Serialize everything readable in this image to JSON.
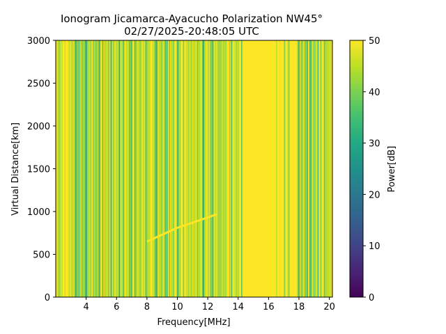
{
  "chart_data": {
    "type": "heatmap",
    "title_line1": "Ionogram Jicamarca-Ayacucho Polarization NW45°",
    "title_line2": "02/27/2025-20:48:05 UTC",
    "xlabel": "Frequency[MHz]",
    "ylabel": "Virtual Distance[km]",
    "xlim": [
      2.0,
      20.2
    ],
    "ylim": [
      0,
      3000
    ],
    "x_ticks": [
      4,
      6,
      8,
      10,
      12,
      14,
      16,
      18,
      20
    ],
    "y_ticks": [
      0,
      500,
      1000,
      1500,
      2000,
      2500,
      3000
    ],
    "colorbar": {
      "label": "Power[dB]",
      "range": [
        0,
        50
      ],
      "ticks": [
        0,
        10,
        20,
        30,
        40,
        50
      ],
      "colormap": "viridis"
    },
    "background_power_db": 50,
    "saturated_band_mhz": [
      14.2,
      16.4
    ],
    "echo_trace": {
      "description_points": [
        [
          8.0,
          650
        ],
        [
          9.0,
          730
        ],
        [
          10.0,
          810
        ],
        [
          11.0,
          870
        ],
        [
          12.0,
          930
        ],
        [
          12.6,
          970
        ]
      ],
      "power_db": 50
    }
  }
}
